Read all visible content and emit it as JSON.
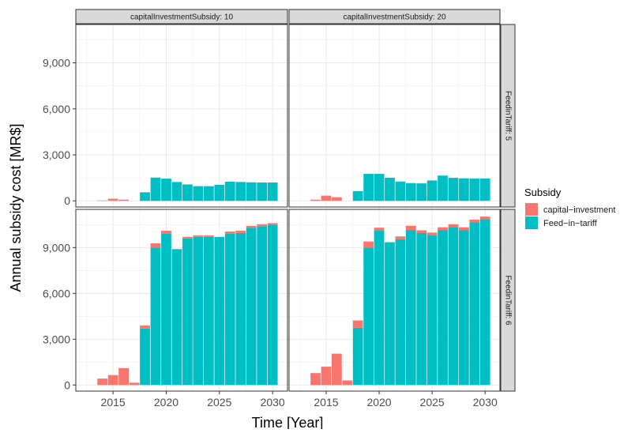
{
  "chart_data": {
    "type": "bar",
    "stacked": true,
    "ylabel": "Annual subsidy cost [MR$]",
    "xlabel": "Time [Year]",
    "legend": {
      "title": "Subsidy",
      "placement": "right",
      "entries": [
        {
          "name": "capital−investment",
          "color": "#F8766D"
        },
        {
          "name": "Feed−in−tariff",
          "color": "#00BFC4"
        }
      ]
    },
    "x_ticks": [
      "2015",
      "2020",
      "2025",
      "2030"
    ],
    "y_ticks": [
      "0",
      "3,000",
      "6,000",
      "9,000"
    ],
    "xlim": [
      2011.5,
      2031.4
    ],
    "ylim": [
      -400,
      11500
    ],
    "grid": true,
    "years": [
      2013,
      2014,
      2015,
      2016,
      2017,
      2018,
      2019,
      2020,
      2021,
      2022,
      2023,
      2024,
      2025,
      2026,
      2027,
      2028,
      2029,
      2030
    ],
    "col_facets": [
      "capitalInvestmentSubsidy: 10",
      "capitalInvestmentSubsidy: 20"
    ],
    "row_facets": [
      "FeedinTariff: 5",
      "FeedinTariff: 6"
    ],
    "panels": [
      {
        "row": 0,
        "col": 0,
        "series": [
          {
            "name": "capital−investment",
            "values": [
              0,
              30,
              140,
              80,
              0,
              0,
              0,
              0,
              0,
              0,
              0,
              0,
              0,
              0,
              0,
              0,
              0,
              0
            ]
          },
          {
            "name": "Feed−in−tariff",
            "values": [
              0,
              0,
              0,
              0,
              0,
              560,
              1520,
              1450,
              1230,
              1070,
              960,
              960,
              1050,
              1250,
              1230,
              1210,
              1200,
              1200
            ]
          }
        ]
      },
      {
        "row": 0,
        "col": 1,
        "series": [
          {
            "name": "capital−investment",
            "values": [
              0,
              80,
              340,
              240,
              0,
              0,
              0,
              0,
              0,
              0,
              0,
              0,
              0,
              0,
              0,
              0,
              0,
              0
            ]
          },
          {
            "name": "Feed−in−tariff",
            "values": [
              0,
              0,
              0,
              0,
              0,
              630,
              1760,
              1760,
              1510,
              1260,
              1160,
              1140,
              1330,
              1650,
              1500,
              1470,
              1460,
              1460
            ]
          }
        ]
      },
      {
        "row": 1,
        "col": 0,
        "series": [
          {
            "name": "capital−investment",
            "values": [
              0,
              420,
              650,
              1100,
              150,
              200,
              280,
              200,
              0,
              100,
              100,
              100,
              0,
              150,
              150,
              120,
              130,
              100
            ]
          },
          {
            "name": "Feed−in−tariff",
            "values": [
              0,
              0,
              0,
              0,
              0,
              3700,
              9000,
              9900,
              8900,
              9600,
              9700,
              9700,
              9700,
              9900,
              9950,
              10300,
              10400,
              10500
            ]
          }
        ]
      },
      {
        "row": 1,
        "col": 1,
        "series": [
          {
            "name": "capital−investment",
            "values": [
              0,
              780,
              1200,
              2050,
              300,
              480,
              400,
              200,
              0,
              180,
              280,
              180,
              180,
              180,
              180,
              180,
              180,
              180
            ]
          },
          {
            "name": "Feed−in−tariff",
            "values": [
              0,
              0,
              0,
              0,
              0,
              3750,
              9000,
              10100,
              9350,
              9550,
              10150,
              9950,
              9800,
              10150,
              10350,
              10150,
              10650,
              10850
            ]
          }
        ]
      }
    ]
  }
}
